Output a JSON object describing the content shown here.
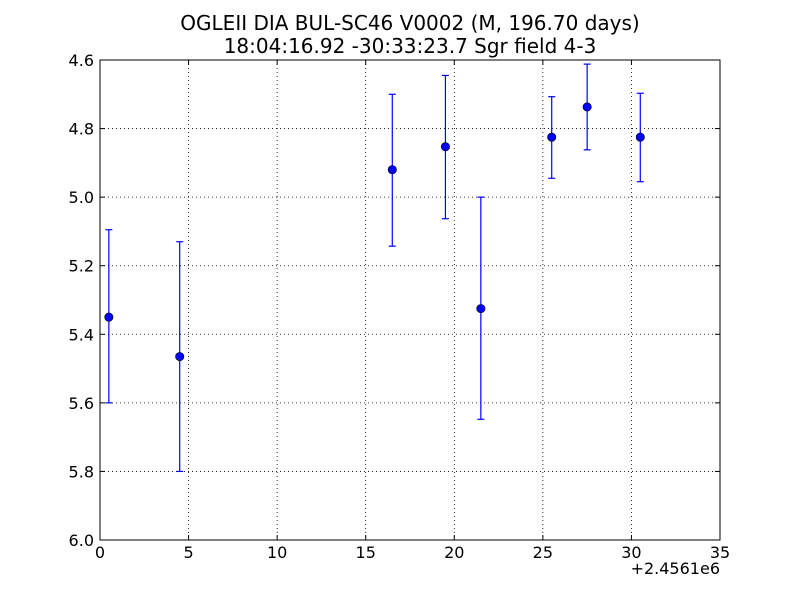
{
  "chart_data": {
    "type": "scatter",
    "title": "OGLEII DIA BUL-SC46 V0002  (M, 196.70 days)",
    "subtitle": "18:04:16.92 -30:33:23.7 Sgr field 4-3",
    "xlabel": "",
    "ylabel": "",
    "x_offset_label": "+2.4561e6",
    "xlim": [
      0,
      35
    ],
    "ylim": [
      4.6,
      6.0
    ],
    "y_inverted": true,
    "grid": true,
    "x_ticks": [
      0,
      5,
      10,
      15,
      20,
      25,
      30,
      35
    ],
    "x_tick_labels": [
      "0",
      "5",
      "10",
      "15",
      "20",
      "25",
      "30",
      "35"
    ],
    "y_ticks": [
      4.6,
      4.8,
      5.0,
      5.2,
      5.4,
      5.6,
      5.8,
      6.0
    ],
    "y_tick_labels": [
      "4.6",
      "4.8",
      "5.0",
      "5.2",
      "5.4",
      "5.6",
      "5.8",
      "6.0"
    ],
    "series": [
      {
        "color": "#0000ff",
        "points": [
          {
            "x": 0.5,
            "y": 5.35,
            "y_low": 5.095,
            "y_high": 5.6
          },
          {
            "x": 4.5,
            "y": 5.465,
            "y_low": 5.13,
            "y_high": 5.8
          },
          {
            "x": 16.5,
            "y": 4.92,
            "y_low": 4.7,
            "y_high": 5.143
          },
          {
            "x": 19.5,
            "y": 4.853,
            "y_low": 4.645,
            "y_high": 5.063
          },
          {
            "x": 21.5,
            "y": 5.325,
            "y_low": 5.0,
            "y_high": 5.648
          },
          {
            "x": 25.5,
            "y": 4.825,
            "y_low": 4.707,
            "y_high": 4.945
          },
          {
            "x": 27.5,
            "y": 4.737,
            "y_low": 4.612,
            "y_high": 4.862
          },
          {
            "x": 30.5,
            "y": 4.825,
            "y_low": 4.697,
            "y_high": 4.955
          }
        ]
      }
    ]
  }
}
